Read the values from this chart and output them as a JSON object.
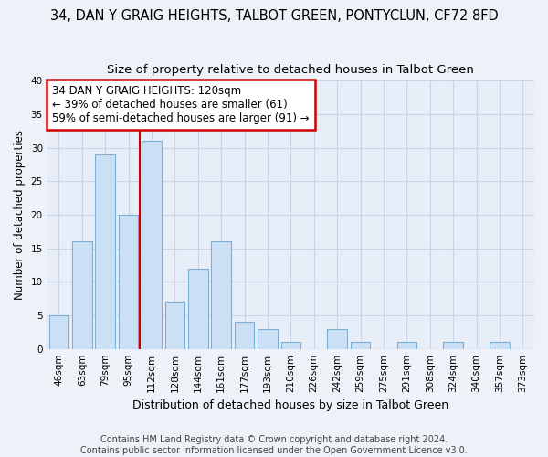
{
  "title": "34, DAN Y GRAIG HEIGHTS, TALBOT GREEN, PONTYCLUN, CF72 8FD",
  "subtitle": "Size of property relative to detached houses in Talbot Green",
  "xlabel": "Distribution of detached houses by size in Talbot Green",
  "ylabel": "Number of detached properties",
  "bar_labels": [
    "46sqm",
    "63sqm",
    "79sqm",
    "95sqm",
    "112sqm",
    "128sqm",
    "144sqm",
    "161sqm",
    "177sqm",
    "193sqm",
    "210sqm",
    "226sqm",
    "242sqm",
    "259sqm",
    "275sqm",
    "291sqm",
    "308sqm",
    "324sqm",
    "340sqm",
    "357sqm",
    "373sqm"
  ],
  "bar_values": [
    5,
    16,
    29,
    20,
    31,
    7,
    12,
    16,
    4,
    3,
    1,
    0,
    3,
    1,
    0,
    1,
    0,
    1,
    0,
    1,
    0
  ],
  "bar_color": "#cce0f5",
  "bar_edge_color": "#7aafd4",
  "ylim": [
    0,
    40
  ],
  "yticks": [
    0,
    5,
    10,
    15,
    20,
    25,
    30,
    35,
    40
  ],
  "vline_x_pos": 3.5,
  "vline_color": "#cc0000",
  "annotation_line1": "34 DAN Y GRAIG HEIGHTS: 120sqm",
  "annotation_line2": "← 39% of detached houses are smaller (61)",
  "annotation_line3": "59% of semi-detached houses are larger (91) →",
  "annotation_box_color": "#ffffff",
  "annotation_box_edge": "#cc0000",
  "footer": "Contains HM Land Registry data © Crown copyright and database right 2024.\nContains public sector information licensed under the Open Government Licence v3.0.",
  "bg_color": "#eef2f8",
  "plot_bg_color": "#e8eef8",
  "grid_color": "#c8d4e8",
  "title_fontsize": 10.5,
  "subtitle_fontsize": 9.5,
  "tick_fontsize": 7.5,
  "ylabel_fontsize": 8.5,
  "xlabel_fontsize": 9,
  "footer_fontsize": 7,
  "annotation_fontsize": 8.5
}
